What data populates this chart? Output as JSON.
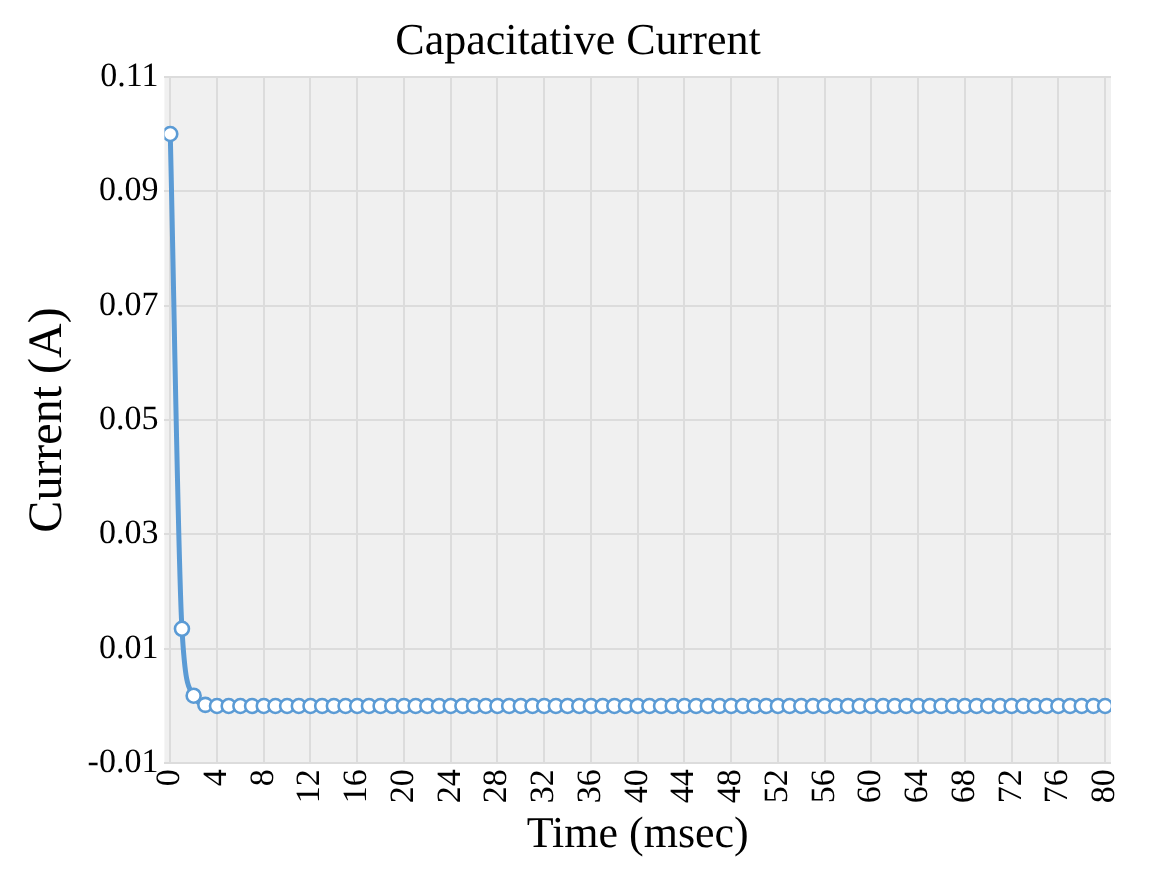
{
  "chart_data": {
    "type": "line",
    "title": "Capacitative Current",
    "xlabel": "Time (msec)",
    "ylabel": "Current (A)",
    "x": [
      0,
      1,
      2,
      3,
      4,
      5,
      6,
      7,
      8,
      9,
      10,
      11,
      12,
      13,
      14,
      15,
      16,
      17,
      18,
      19,
      20,
      21,
      22,
      23,
      24,
      25,
      26,
      27,
      28,
      29,
      30,
      31,
      32,
      33,
      34,
      35,
      36,
      37,
      38,
      39,
      40,
      41,
      42,
      43,
      44,
      45,
      46,
      47,
      48,
      49,
      50,
      51,
      52,
      53,
      54,
      55,
      56,
      57,
      58,
      59,
      60,
      61,
      62,
      63,
      64,
      65,
      66,
      67,
      68,
      69,
      70,
      71,
      72,
      73,
      74,
      75,
      76,
      77,
      78,
      79,
      80
    ],
    "series": [
      {
        "color": "#5b9bd5",
        "values": [
          0.1,
          0.0135,
          0.0018,
          0.0002,
          0,
          0,
          0,
          0,
          0,
          0,
          0,
          0,
          0,
          0,
          0,
          0,
          0,
          0,
          0,
          0,
          0,
          0,
          0,
          0,
          0,
          0,
          0,
          0,
          0,
          0,
          0,
          0,
          0,
          0,
          0,
          0,
          0,
          0,
          0,
          0,
          0,
          0,
          0,
          0,
          0,
          0,
          0,
          0,
          0,
          0,
          0,
          0,
          0,
          0,
          0,
          0,
          0,
          0,
          0,
          0,
          0,
          0,
          0,
          0,
          0,
          0,
          0,
          0,
          0,
          0,
          0,
          0,
          0,
          0,
          0,
          0,
          0,
          0,
          0,
          0,
          0
        ]
      }
    ],
    "xlim": [
      -0.5,
      80.5
    ],
    "xticks": [
      0,
      4,
      8,
      12,
      16,
      20,
      24,
      28,
      32,
      36,
      40,
      44,
      48,
      52,
      56,
      60,
      64,
      68,
      72,
      76,
      80
    ],
    "ylim": [
      -0.01,
      0.11
    ],
    "yticks": [
      -0.01,
      0.01,
      0.03,
      0.05,
      0.07,
      0.09,
      0.11
    ],
    "grid": true,
    "legend": false,
    "marker": "circle",
    "line_style": "solid"
  }
}
